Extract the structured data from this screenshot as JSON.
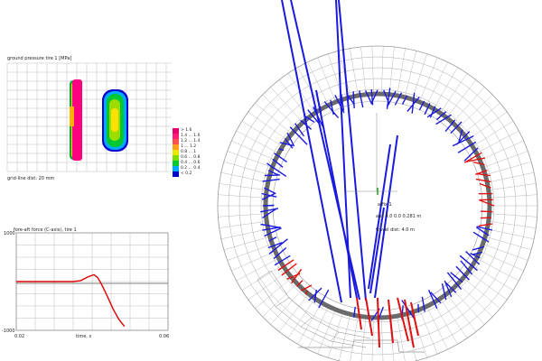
{
  "pressure_panel": {
    "title": "ground pressure tire 1 [MPa]",
    "grid_caption": "grid-line dist: 20 mm",
    "legend": [
      {
        "label": "> 1.6",
        "color": "#e8006f"
      },
      {
        "label": "1.4 ... 1.6",
        "color": "#ff1a7a"
      },
      {
        "label": "1.2 ... 1.4",
        "color": "#ff5050"
      },
      {
        "label": "1 ... 1.2",
        "color": "#ff9d1f"
      },
      {
        "label": "0.8 ... 1",
        "color": "#e8e800"
      },
      {
        "label": "0.6 ... 0.8",
        "color": "#7ddc00"
      },
      {
        "label": "0.4 ... 0.6",
        "color": "#00c832"
      },
      {
        "label": "0.2 ... 0.4",
        "color": "#00aaff"
      },
      {
        "label": "< 0.2",
        "color": "#0000cc"
      }
    ]
  },
  "force_panel": {
    "title": "fore-aft force (C-axis), tire 1",
    "y_top": "1000",
    "y_bottom": "-1000",
    "x_left": "0.02",
    "x_mid": "time, s",
    "x_right": "0.06"
  },
  "chart_data": {
    "type": "line",
    "title": "fore-aft force (C-axis), tire 1",
    "xlabel": "time, s",
    "ylabel": "",
    "xlim": [
      0.02,
      0.06
    ],
    "ylim": [
      -1000,
      1000
    ],
    "series": [
      {
        "color": "#dd0000",
        "x": [
          0.02,
          0.025,
          0.03,
          0.035,
          0.037,
          0.039,
          0.0405,
          0.0415,
          0.0425,
          0.044,
          0.0455,
          0.047,
          0.0485
        ],
        "y": [
          0,
          0,
          0,
          0,
          20,
          100,
          140,
          80,
          -60,
          -300,
          -560,
          -770,
          -920
        ]
      }
    ]
  },
  "viewer": {
    "origin_label": "affix 1",
    "position_readout": "abs   4.0    0.0  0.281 m",
    "travel_readout": "travel dist: 4.0 m"
  },
  "colors": {
    "pressure_pink": "#ff0080",
    "force_vector_blue": "#1a1add",
    "force_vector_red": "#e01010",
    "grid_gray": "#aaaaaa",
    "rim_gray": "#6a6a6a"
  }
}
